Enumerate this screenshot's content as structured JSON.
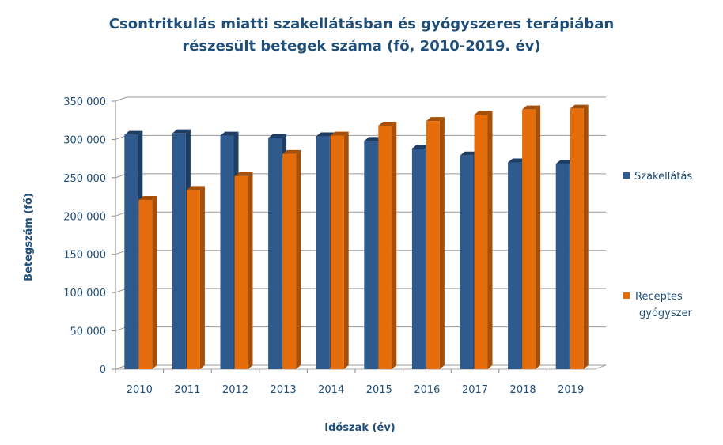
{
  "chart_data": {
    "type": "bar",
    "title_line1": "Csontritkulás miatti szakellátásban és gyógyszeres terápiában",
    "title_line2": "részesült betegek száma (fő, 2010-2019. év)",
    "xlabel": "Időszak (év)",
    "ylabel": "Betegszám (fő)",
    "ylim": [
      0,
      350000
    ],
    "yticks": [
      0,
      50000,
      100000,
      150000,
      200000,
      250000,
      300000,
      350000
    ],
    "ytick_labels": [
      "0",
      "50 000",
      "100 000",
      "150 000",
      "200 000",
      "250 000",
      "300 000",
      "350 000"
    ],
    "categories": [
      "2010",
      "2011",
      "2012",
      "2013",
      "2014",
      "2015",
      "2016",
      "2017",
      "2018",
      "2019"
    ],
    "series": [
      {
        "name": "Szakellátás",
        "color": "#2e5a8e",
        "side": "#1e3d63",
        "values": [
          306000,
          308000,
          305000,
          302000,
          304000,
          298000,
          288000,
          279000,
          270000,
          268000
        ]
      },
      {
        "name": "Receptes gyógyszer",
        "name_line1": "Receptes",
        "name_line2": "gyógyszer",
        "color": "#e46c0a",
        "side": "#a64f08",
        "values": [
          221000,
          234000,
          252000,
          281000,
          305000,
          318000,
          324000,
          332000,
          339000,
          340000
        ]
      }
    ],
    "legend": "right",
    "grid": true
  }
}
